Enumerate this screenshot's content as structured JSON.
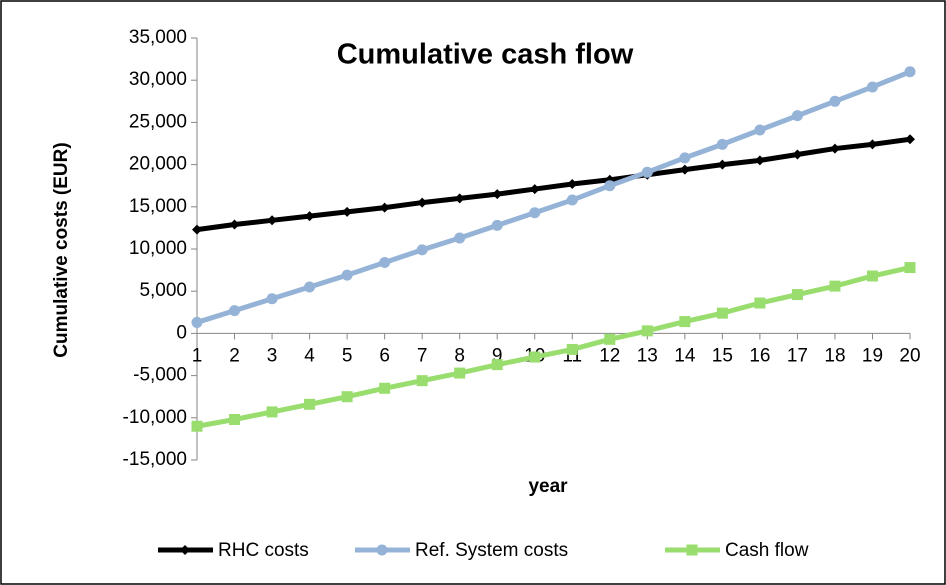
{
  "chart_data": {
    "type": "line",
    "title": "Cumulative cash flow",
    "x_label": "year",
    "y_label": "Cumulative costs  (EUR)",
    "categories": [
      "1",
      "2",
      "3",
      "4",
      "5",
      "6",
      "7",
      "8",
      "9",
      "10",
      "11",
      "12",
      "13",
      "14",
      "15",
      "16",
      "17",
      "18",
      "19",
      "20"
    ],
    "series": [
      {
        "name": "RHC costs",
        "color": "#000000",
        "marker": "diamond",
        "values": [
          12300,
          12900,
          13400,
          13900,
          14400,
          14900,
          15500,
          16000,
          16500,
          17100,
          17700,
          18200,
          18800,
          19400,
          20000,
          20500,
          21200,
          21900,
          22400,
          23000
        ]
      },
      {
        "name": "Ref. System costs",
        "color": "#95b3d7",
        "marker": "circle",
        "values": [
          1300,
          2700,
          4100,
          5500,
          6900,
          8400,
          9900,
          11300,
          12800,
          14300,
          15800,
          17500,
          19100,
          20800,
          22400,
          24100,
          25800,
          27500,
          29200,
          31000
        ]
      },
      {
        "name": "Cash flow",
        "color": "#99dd6e",
        "marker": "square",
        "values": [
          -11000,
          -10200,
          -9300,
          -8400,
          -7500,
          -6500,
          -5600,
          -4700,
          -3700,
          -2800,
          -1900,
          -700,
          300,
          1400,
          2400,
          3600,
          4600,
          5600,
          6800,
          7800
        ]
      }
    ],
    "ylim": [
      -15000,
      35000
    ],
    "yticks": [
      {
        "value": -15000,
        "label": "-15,000"
      },
      {
        "value": -10000,
        "label": "-10,000"
      },
      {
        "value": -5000,
        "label": "-5,000"
      },
      0,
      {
        "value": 5000,
        "label": "5,000"
      },
      {
        "value": 10000,
        "label": "10,000"
      },
      {
        "value": 15000,
        "label": "15,000"
      },
      {
        "value": 20000,
        "label": "20,000"
      },
      {
        "value": 25000,
        "label": "25,000"
      },
      {
        "value": 30000,
        "label": "30,000"
      },
      {
        "value": 35000,
        "label": "35,000"
      }
    ],
    "grid": false,
    "legend": "bottom"
  }
}
